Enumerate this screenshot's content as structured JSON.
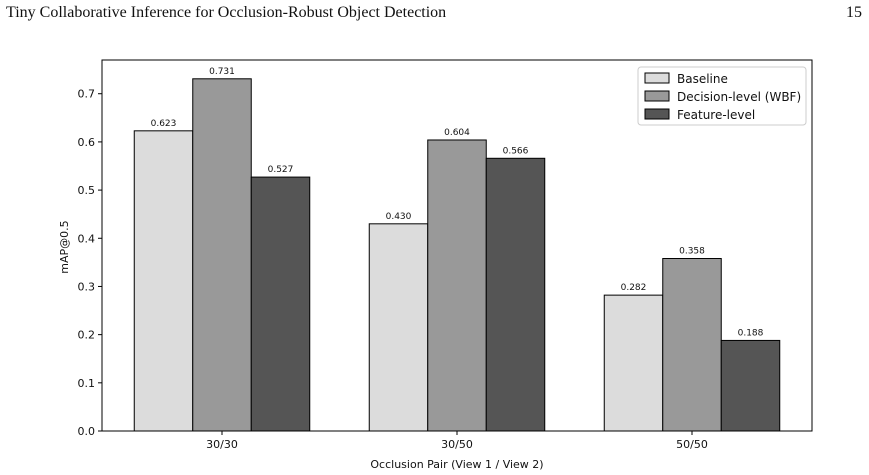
{
  "header": {
    "running_title": "Tiny Collaborative Inference for Occlusion-Robust Object Detection",
    "page_number": "15"
  },
  "chart_data": {
    "type": "bar",
    "title": "",
    "xlabel": "Occlusion Pair (View 1 / View 2)",
    "ylabel": "mAP@0.5",
    "categories": [
      "30/30",
      "30/50",
      "50/50"
    ],
    "ylim": [
      0,
      0.77
    ],
    "yticks": [
      0.0,
      0.1,
      0.2,
      0.3,
      0.4,
      0.5,
      0.6,
      0.7
    ],
    "ytick_labels": [
      "0.0",
      "0.1",
      "0.2",
      "0.3",
      "0.4",
      "0.5",
      "0.6",
      "0.7"
    ],
    "grid": false,
    "legend_position": "top-right",
    "series": [
      {
        "name": "Baseline",
        "color": "#dcdcdc",
        "values": [
          0.623,
          0.43,
          0.282
        ],
        "labels": [
          "0.623",
          "0.430",
          "0.282"
        ]
      },
      {
        "name": "Decision-level (WBF)",
        "color": "#999999",
        "values": [
          0.731,
          0.604,
          0.358
        ],
        "labels": [
          "0.731",
          "0.604",
          "0.358"
        ]
      },
      {
        "name": "Feature-level",
        "color": "#555555",
        "values": [
          0.527,
          0.566,
          0.188
        ],
        "labels": [
          "0.527",
          "0.566",
          "0.188"
        ]
      }
    ]
  }
}
